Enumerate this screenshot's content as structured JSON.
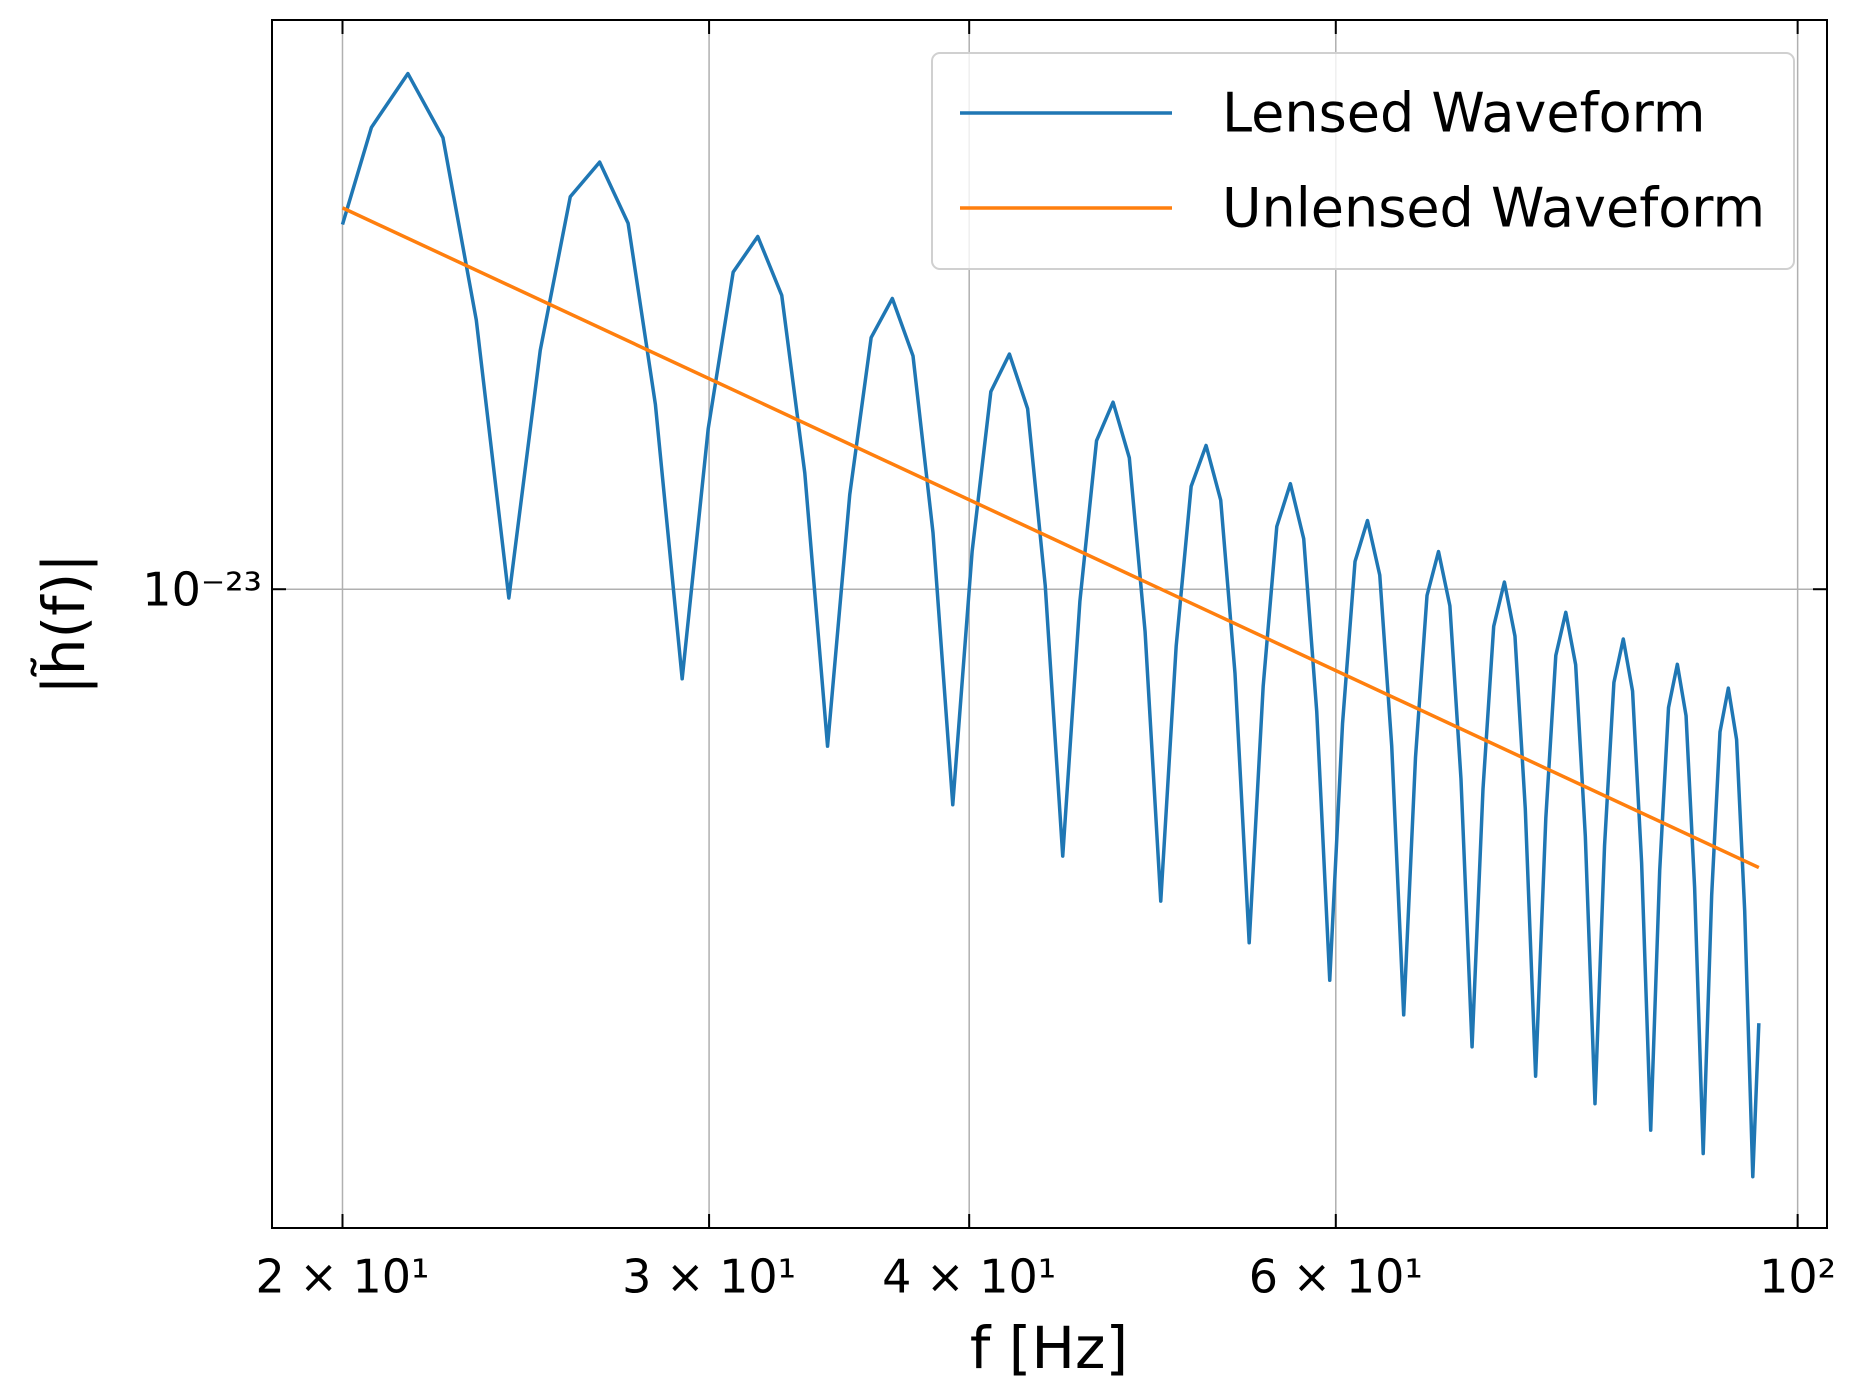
{
  "chart_data": {
    "type": "line",
    "xlabel": "f [Hz]",
    "ylabel": "|h̃(f)|",
    "xscale": "log",
    "yscale": "log",
    "xlim": [
      18.5,
      103.3
    ],
    "ylim": [
      1.7e-24,
      4.85e-23
    ],
    "xticks": [
      {
        "value": 20,
        "label": "2 × 10¹"
      },
      {
        "value": 30,
        "label": "3 × 10¹"
      },
      {
        "value": 40,
        "label": "4 × 10¹"
      },
      {
        "value": 60,
        "label": "6 × 10¹"
      },
      {
        "value": 100,
        "label": "10²"
      }
    ],
    "yticks": [
      {
        "value": 1e-23,
        "label": "10⁻²³"
      }
    ],
    "grid": true,
    "legend": "upper right",
    "series": [
      {
        "name": "Lensed Waveform",
        "color": "#1f77b4",
        "x": [
          20,
          20.65,
          21.5,
          22.35,
          23.19,
          24.04,
          24.89,
          25.73,
          26.58,
          27.43,
          28.27,
          29.12,
          29.97,
          30.81,
          31.66,
          32.51,
          33.35,
          34.2,
          35.05,
          35.89,
          36.74,
          37.59,
          38.43,
          39.28,
          40.13,
          40.97,
          41.82,
          42.67,
          43.51,
          44.36,
          45.21,
          46.05,
          46.9,
          47.75,
          48.59,
          49.44,
          50.29,
          51.13,
          51.98,
          52.83,
          53.67,
          54.52,
          55.37,
          56.21,
          57.06,
          57.91,
          58.75,
          59.6,
          60.45,
          61.29,
          62.14,
          62.99,
          63.83,
          64.68,
          65.53,
          66.37,
          67.22,
          68.07,
          68.91,
          69.76,
          70.61,
          71.45,
          72.3,
          73.15,
          73.99,
          74.84,
          75.69,
          76.53,
          77.38,
          78.23,
          79.07,
          79.92,
          80.77,
          81.61,
          82.46,
          83.31,
          84.15,
          85.0,
          85.85,
          86.69,
          87.54,
          88.39,
          89.23,
          90.08,
          90.93,
          91.77,
          92.62,
          93.47,
          94.31,
          95.16,
          95.8
        ],
        "values": [
          2.75e-23,
          3.6e-23,
          4.18e-23,
          3.5e-23,
          2.11e-23,
          9.76e-24,
          1.94e-23,
          2.97e-23,
          3.27e-23,
          2.76e-23,
          1.67e-23,
          7.8e-24,
          1.56e-23,
          2.41e-23,
          2.66e-23,
          2.26e-23,
          1.38e-23,
          6.47e-24,
          1.3e-23,
          2.01e-23,
          2.24e-23,
          1.91e-23,
          1.17e-23,
          5.5e-24,
          1.11e-23,
          1.73e-23,
          1.92e-23,
          1.65e-23,
          1.01e-23,
          4.77e-24,
          9.67e-24,
          1.51e-23,
          1.68e-23,
          1.44e-23,
          8.89e-24,
          4.21e-24,
          8.54e-24,
          1.33e-23,
          1.49e-23,
          1.28e-23,
          7.92e-24,
          3.75e-24,
          7.64e-24,
          1.19e-23,
          1.34e-23,
          1.15e-23,
          7.12e-24,
          3.38e-24,
          6.89e-24,
          1.08e-23,
          1.21e-23,
          1.04e-23,
          6.47e-24,
          3.07e-24,
          6.27e-24,
          9.83e-24,
          1.11e-23,
          9.55e-24,
          5.91e-24,
          2.81e-24,
          5.75e-24,
          9.02e-24,
          1.02e-23,
          8.78e-24,
          5.44e-24,
          2.59e-24,
          5.3e-24,
          8.32e-24,
          9.38e-24,
          8.11e-24,
          5.04e-24,
          2.4e-24,
          4.91e-24,
          7.72e-24,
          8.71e-24,
          7.54e-24,
          4.68e-24,
          2.23e-24,
          4.58e-24,
          7.2e-24,
          8.12e-24,
          7.04e-24,
          4.37e-24,
          2.09e-24,
          4.28e-24,
          6.73e-24,
          7.6e-24,
          6.59e-24,
          4.1e-24,
          1.96e-24,
          3e-24
        ]
      },
      {
        "name": "Unlensed Waveform",
        "color": "#ff7f0e",
        "x": [
          20,
          95.8
        ],
        "values": [
          2.88e-23,
          4.62e-24
        ]
      }
    ]
  }
}
